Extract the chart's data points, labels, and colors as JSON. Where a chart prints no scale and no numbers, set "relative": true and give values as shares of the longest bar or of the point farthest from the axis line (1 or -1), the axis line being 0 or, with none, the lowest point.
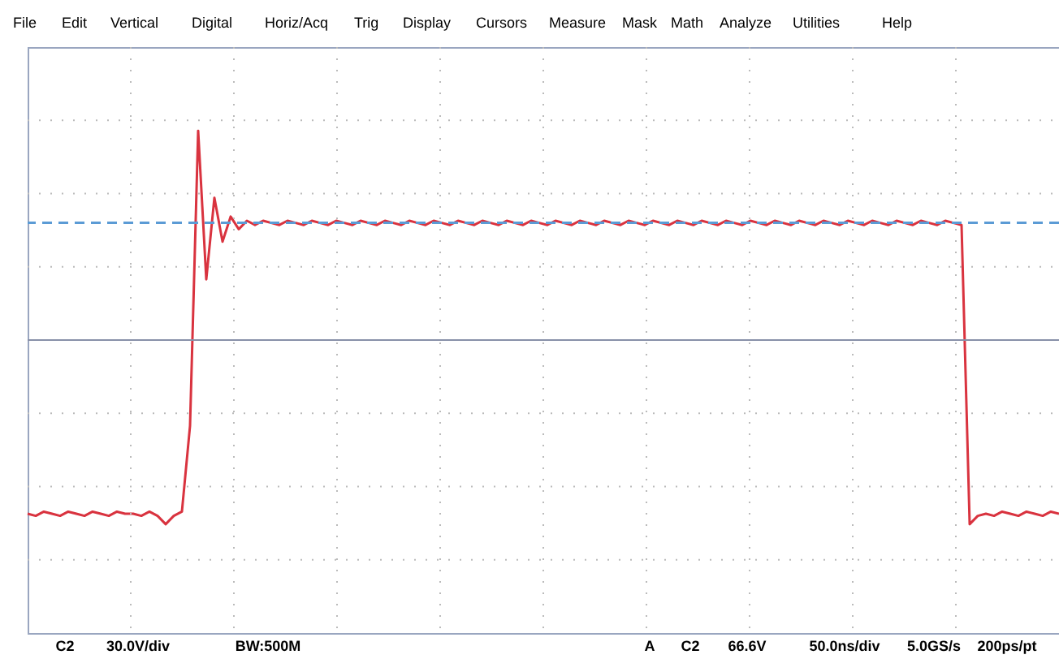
{
  "chart_data": {
    "type": "line",
    "relative": true,
    "grid": true,
    "line_style": "solid",
    "marker": "none",
    "categories": [
      null,
      null,
      null,
      null,
      null,
      null,
      null,
      null,
      null,
      null,
      null,
      null,
      null,
      null,
      null,
      null,
      null,
      null,
      null,
      null,
      null,
      null,
      null,
      null,
      null,
      null,
      null,
      null,
      null,
      null,
      null,
      null,
      null,
      null,
      null,
      null,
      null,
      null,
      null,
      null,
      null,
      null,
      null,
      null,
      null,
      null,
      null,
      null,
      null,
      null,
      null,
      null,
      null,
      null,
      null,
      null,
      null,
      null,
      null,
      null,
      null,
      null,
      null,
      null,
      null,
      null,
      null,
      null,
      null,
      null,
      null,
      null,
      null,
      null,
      null,
      null,
      null,
      null,
      null,
      null,
      null,
      null,
      null,
      null,
      null,
      null,
      null,
      null,
      null,
      null,
      null,
      null,
      null,
      null,
      null,
      null,
      null,
      null,
      null,
      null,
      null,
      null,
      null,
      null,
      null,
      null,
      null,
      null,
      null,
      null,
      null,
      null,
      null,
      null,
      null,
      null,
      null,
      null,
      null,
      null,
      null,
      null,
      null,
      null,
      null,
      null,
      null,
      null
    ],
    "series": [
      {
        "color": "#d9333f",
        "values": [
          -0.83,
          -0.84,
          -0.82,
          -0.83,
          -0.84,
          -0.82,
          -0.83,
          -0.84,
          -0.82,
          -0.83,
          -0.84,
          -0.82,
          -0.83,
          -0.83,
          -0.84,
          -0.82,
          -0.84,
          -0.88,
          -0.84,
          -0.82,
          -0.41,
          1.0,
          0.29,
          0.68,
          0.47,
          0.59,
          0.53,
          0.57,
          0.55,
          0.57,
          0.56,
          0.55,
          0.57,
          0.56,
          0.55,
          0.57,
          0.56,
          0.55,
          0.57,
          0.56,
          0.55,
          0.57,
          0.56,
          0.55,
          0.57,
          0.56,
          0.55,
          0.57,
          0.56,
          0.55,
          0.57,
          0.56,
          0.55,
          0.57,
          0.56,
          0.55,
          0.57,
          0.56,
          0.55,
          0.57,
          0.56,
          0.55,
          0.57,
          0.56,
          0.55,
          0.57,
          0.56,
          0.55,
          0.57,
          0.56,
          0.55,
          0.57,
          0.56,
          0.55,
          0.57,
          0.56,
          0.55,
          0.57,
          0.56,
          0.55,
          0.57,
          0.56,
          0.55,
          0.57,
          0.56,
          0.55,
          0.57,
          0.56,
          0.55,
          0.57,
          0.56,
          0.55,
          0.57,
          0.56,
          0.55,
          0.57,
          0.56,
          0.55,
          0.57,
          0.56,
          0.55,
          0.57,
          0.56,
          0.55,
          0.57,
          0.56,
          0.55,
          0.57,
          0.56,
          0.55,
          0.57,
          0.56,
          0.55,
          0.57,
          0.56,
          0.55,
          -0.88,
          -0.84,
          -0.83,
          -0.84,
          -0.82,
          -0.83,
          -0.84,
          -0.82,
          -0.83,
          -0.84,
          -0.82,
          -0.83
        ]
      }
    ],
    "ref_lines": [
      {
        "axis": "y",
        "value": 0.56,
        "color": "#5b9bd5",
        "line_style": "dashed"
      }
    ],
    "annotations": [
      "File",
      "Edit",
      "Vertical",
      "Digital",
      "Horiz/Acq",
      "Trig",
      "Display",
      "Cursors",
      "Measure",
      "Mask",
      "Math",
      "Analyze",
      "Utilities",
      "Help",
      "C2",
      "30.0V/div",
      "BW:500M",
      "A",
      "C2",
      "66.6V",
      "50.0ns/div",
      "5.0GS/s",
      "200ps/pt"
    ]
  }
}
